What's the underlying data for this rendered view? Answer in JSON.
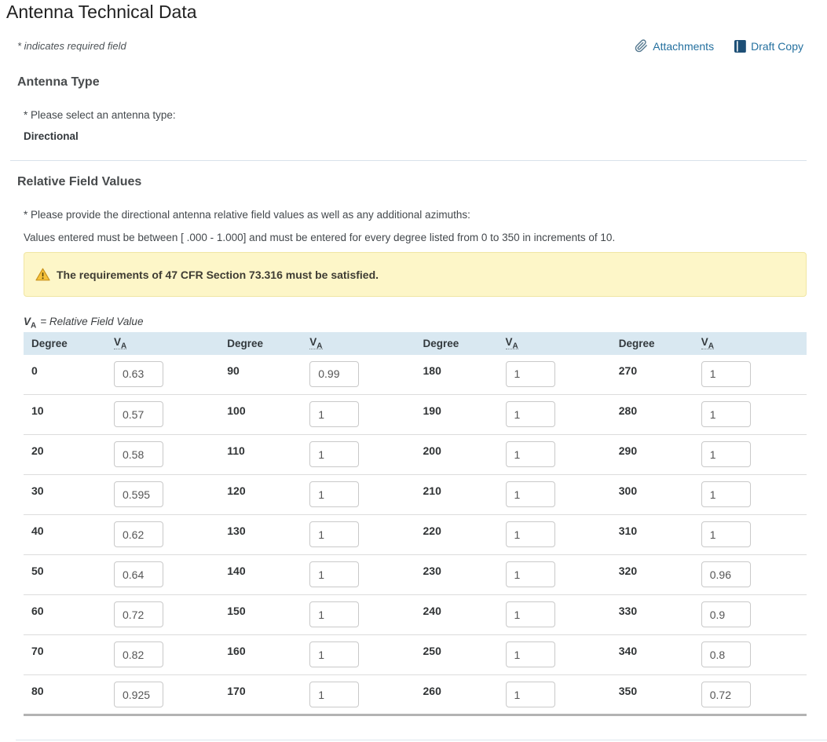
{
  "page": {
    "title": "Antenna Technical Data",
    "required_note": "* indicates required field",
    "attachments_label": "Attachments",
    "draft_copy_label": "Draft Copy"
  },
  "antenna_type": {
    "heading": "Antenna Type",
    "prompt": "* Please select an antenna type:",
    "value": "Directional"
  },
  "relative_field": {
    "heading": "Relative Field Values",
    "prompt": "* Please provide the directional antenna relative field values as well as any additional azimuths:",
    "instructions": "Values entered must be between [ .000 - 1.000] and must be entered for every degree listed from 0 to 350 in increments of 10.",
    "warning": "The requirements of 47 CFR Section 73.316 must be satisfied.",
    "legend_v": "V",
    "legend_sub": "A",
    "legend_rest": "= Relative Field Value",
    "table": {
      "degree_header": "Degree",
      "va_header_v": "V",
      "va_header_sub": "A",
      "rows": [
        {
          "cells": [
            {
              "degree": "0",
              "value": "0.63"
            },
            {
              "degree": "90",
              "value": "0.99"
            },
            {
              "degree": "180",
              "value": "1"
            },
            {
              "degree": "270",
              "value": "1"
            }
          ]
        },
        {
          "cells": [
            {
              "degree": "10",
              "value": "0.57"
            },
            {
              "degree": "100",
              "value": "1"
            },
            {
              "degree": "190",
              "value": "1"
            },
            {
              "degree": "280",
              "value": "1"
            }
          ]
        },
        {
          "cells": [
            {
              "degree": "20",
              "value": "0.58"
            },
            {
              "degree": "110",
              "value": "1"
            },
            {
              "degree": "200",
              "value": "1"
            },
            {
              "degree": "290",
              "value": "1"
            }
          ]
        },
        {
          "cells": [
            {
              "degree": "30",
              "value": "0.595"
            },
            {
              "degree": "120",
              "value": "1"
            },
            {
              "degree": "210",
              "value": "1"
            },
            {
              "degree": "300",
              "value": "1"
            }
          ]
        },
        {
          "cells": [
            {
              "degree": "40",
              "value": "0.62"
            },
            {
              "degree": "130",
              "value": "1"
            },
            {
              "degree": "220",
              "value": "1"
            },
            {
              "degree": "310",
              "value": "1"
            }
          ]
        },
        {
          "cells": [
            {
              "degree": "50",
              "value": "0.64"
            },
            {
              "degree": "140",
              "value": "1"
            },
            {
              "degree": "230",
              "value": "1"
            },
            {
              "degree": "320",
              "value": "0.96"
            }
          ]
        },
        {
          "cells": [
            {
              "degree": "60",
              "value": "0.72"
            },
            {
              "degree": "150",
              "value": "1"
            },
            {
              "degree": "240",
              "value": "1"
            },
            {
              "degree": "330",
              "value": "0.9"
            }
          ]
        },
        {
          "cells": [
            {
              "degree": "70",
              "value": "0.82"
            },
            {
              "degree": "160",
              "value": "1"
            },
            {
              "degree": "250",
              "value": "1"
            },
            {
              "degree": "340",
              "value": "0.8"
            }
          ]
        },
        {
          "cells": [
            {
              "degree": "80",
              "value": "0.925"
            },
            {
              "degree": "170",
              "value": "1"
            },
            {
              "degree": "260",
              "value": "1"
            },
            {
              "degree": "350",
              "value": "0.72"
            }
          ]
        }
      ]
    }
  },
  "colors": {
    "link_blue": "#24709f",
    "draft_icon_blue": "#1d4f76",
    "table_header_bg": "#d9e8f1",
    "warning_bg": "#fdf6c8",
    "warning_border": "#f0e6a4",
    "warning_triangle": "#f6c23a"
  }
}
